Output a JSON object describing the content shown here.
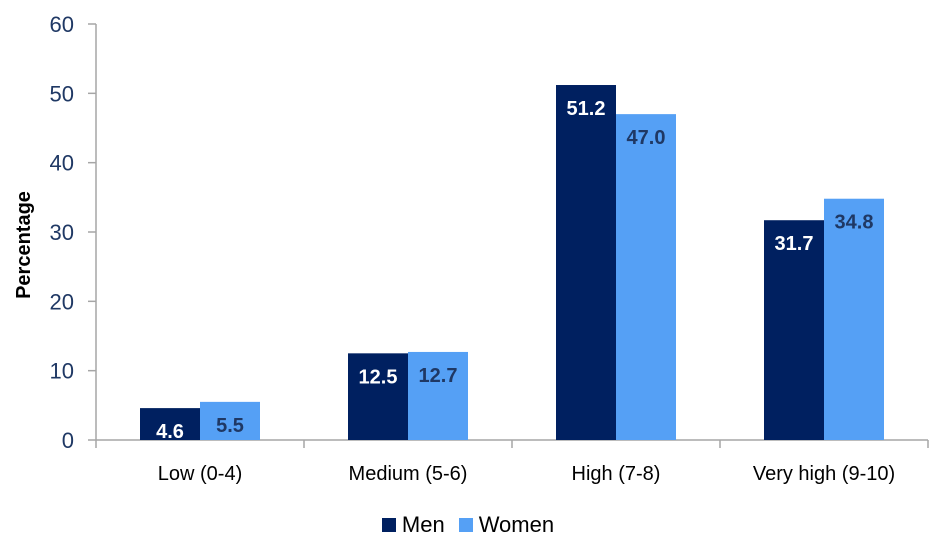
{
  "chart_data": {
    "type": "bar",
    "categories": [
      "Low (0-4)",
      "Medium (5-6)",
      "High (7-8)",
      "Very high (9-10)"
    ],
    "series": [
      {
        "name": "Men",
        "values": [
          4.6,
          12.5,
          51.2,
          31.7
        ],
        "color": "#002060",
        "label_color": "#ffffff"
      },
      {
        "name": "Women",
        "values": [
          5.5,
          12.7,
          47.0,
          34.8
        ],
        "color": "#55a0f5",
        "label_color": "#1f3864"
      }
    ],
    "value_labels": [
      [
        "4.6",
        "12.5",
        "51.2",
        "31.7"
      ],
      [
        "5.5",
        "12.7",
        "47.0",
        "34.8"
      ]
    ],
    "ylabel": "Percentage",
    "ylim": [
      0,
      60
    ],
    "yticks": [
      "0",
      "10",
      "20",
      "30",
      "40",
      "50",
      "60"
    ],
    "grid": false,
    "legend_position": "bottom"
  }
}
